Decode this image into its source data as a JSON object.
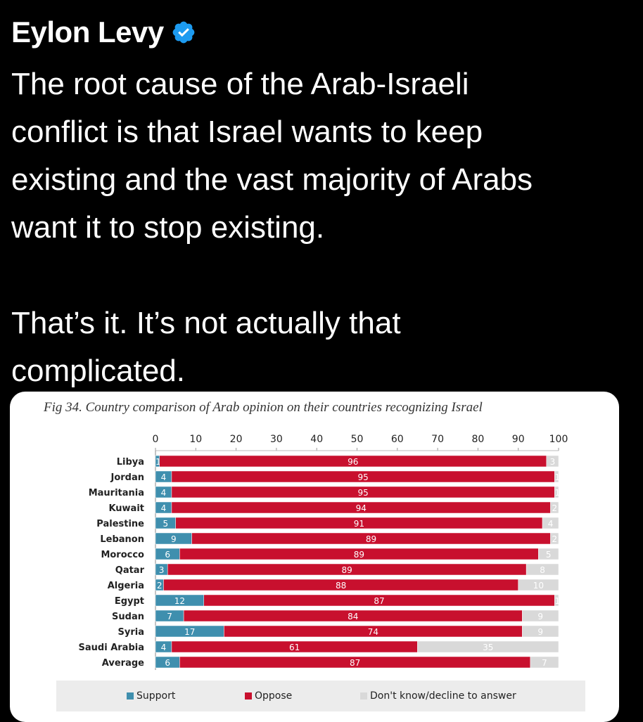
{
  "tweet": {
    "author_name": "Eylon Levy",
    "verified_badge": "verified-badge-icon",
    "text": "The root cause of the Arab-Israeli\nconflict is that Israel wants to keep\nexisting and the vast majority of Arabs\nwant it to stop existing.\n\nThat’s it. It’s not actually that\ncomplicated."
  },
  "colors": {
    "support": "#3f8fae",
    "oppose": "#c8102e",
    "dont_know": "#d9d9d9",
    "verified": "#1d9bf0"
  },
  "chart_data": {
    "type": "bar",
    "orientation": "horizontal",
    "stacked": true,
    "title": "Fig 34. Country comparison of Arab opinion on their countries recognizing Israel",
    "categories": [
      "Libya",
      "Jordan",
      "Mauritania",
      "Kuwait",
      "Palestine",
      "Lebanon",
      "Morocco",
      "Qatar",
      "Algeria",
      "Egypt",
      "Sudan",
      "Syria",
      "Saudi Arabia",
      "Average"
    ],
    "series": [
      {
        "name": "Support",
        "values": [
          1,
          4,
          4,
          4,
          5,
          9,
          6,
          3,
          2,
          12,
          7,
          17,
          4,
          6
        ]
      },
      {
        "name": "Oppose",
        "values": [
          96,
          95,
          95,
          94,
          91,
          89,
          89,
          89,
          88,
          87,
          84,
          74,
          61,
          87
        ]
      },
      {
        "name": "Don't know/decline to answer",
        "values": [
          3,
          1,
          1,
          2,
          4,
          2,
          5,
          8,
          10,
          1,
          9,
          9,
          35,
          7
        ]
      }
    ],
    "xticks": [
      0,
      10,
      20,
      30,
      40,
      50,
      60,
      70,
      80,
      90,
      100
    ],
    "xlim": [
      0,
      100
    ],
    "legend_position": "bottom",
    "grid": false
  }
}
